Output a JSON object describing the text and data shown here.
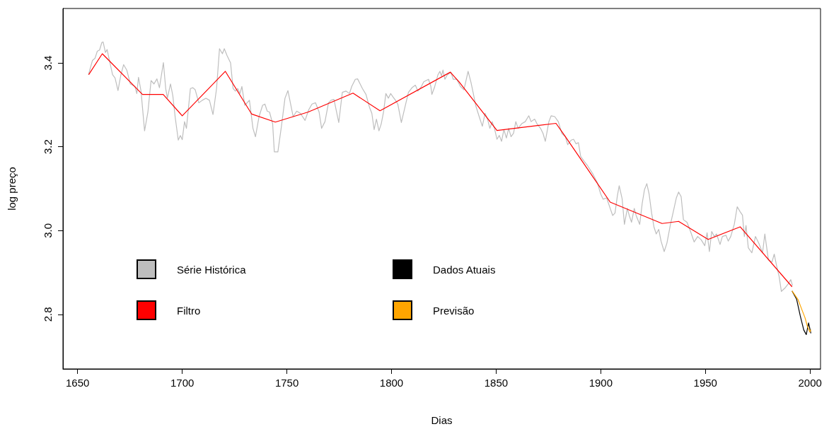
{
  "chart_data": {
    "type": "line",
    "xlabel": "Dias",
    "ylabel": "log preço",
    "xlim": [
      1643,
      2005
    ],
    "ylim": [
      2.67,
      3.53
    ],
    "xticks": [
      1650,
      1700,
      1750,
      1800,
      1850,
      1900,
      1950,
      2000
    ],
    "yticks": [
      2.8,
      {
        "value": 3,
        "label": "3.0"
      },
      3.2,
      3.4
    ],
    "legend": "bottom left",
    "series": [
      {
        "name": "Série Histórica",
        "color": "#bebebe",
        "x": [
          1655.2,
          1657.1,
          1658.3,
          1659.4,
          1660.5,
          1661.6,
          1662.2,
          1663.3,
          1664.1,
          1665,
          1666.7,
          1667.9,
          1669.3,
          1670.7,
          1672,
          1673.5,
          1675.2,
          1677.4,
          1678.3,
          1679.1,
          1680.3,
          1682,
          1683.6,
          1685.1,
          1686.5,
          1687.9,
          1689.1,
          1691,
          1692.1,
          1692.9,
          1694.4,
          1695.5,
          1696.6,
          1698.1,
          1699.1,
          1700,
          1701.1,
          1702,
          1703.9,
          1705.1,
          1706.2,
          1707.9,
          1709.6,
          1711.3,
          1713,
          1714.7,
          1716.4,
          1717.8,
          1719.2,
          1720.1,
          1721.4,
          1723.1,
          1724.3,
          1725.4,
          1726.5,
          1727.6,
          1728.5,
          1729.9,
          1732.1,
          1733.8,
          1735,
          1736.7,
          1738.4,
          1739.5,
          1740.6,
          1741.7,
          1743.2,
          1744,
          1745.7,
          1747.4,
          1749.1,
          1750.5,
          1751.9,
          1753,
          1754.7,
          1756.4,
          1758.7,
          1760.4,
          1762,
          1763.7,
          1765.4,
          1766.6,
          1768.2,
          1769.9,
          1771.1,
          1772.5,
          1774.8,
          1776.5,
          1778.2,
          1779.9,
          1781,
          1782.7,
          1783.8,
          1785,
          1786.1,
          1787.8,
          1789.5,
          1790.6,
          1791.7,
          1792.8,
          1794,
          1795.1,
          1796.2,
          1797.3,
          1798.5,
          1799.6,
          1800.7,
          1801.9,
          1803,
          1804.7,
          1806.4,
          1808.1,
          1809.8,
          1811.4,
          1812.6,
          1814.3,
          1815.4,
          1816.5,
          1817.7,
          1818.8,
          1819.3,
          1820.5,
          1822.2,
          1823.1,
          1823.9,
          1824.6,
          1825.5,
          1826.7,
          1828.4,
          1829.5,
          1831.2,
          1832.9,
          1834.6,
          1836.6,
          1838,
          1839.1,
          1840.2,
          1841.9,
          1843.4,
          1844.7,
          1845.9,
          1847,
          1848.1,
          1849.2,
          1850.4,
          1851.5,
          1852.6,
          1853.7,
          1854.9,
          1856,
          1857.1,
          1858.3,
          1859.4,
          1860.5,
          1862.2,
          1863.9,
          1865.6,
          1866.7,
          1868.4,
          1869.5,
          1871.2,
          1872.4,
          1873.5,
          1875.2,
          1876.3,
          1878,
          1879.7,
          1881.4,
          1883.1,
          1884.2,
          1885.9,
          1887,
          1888.2,
          1889.3,
          1890.4,
          1892.1,
          1893.8,
          1896,
          1898.3,
          1900,
          1901.1,
          1902.8,
          1904.5,
          1905.7,
          1906.8,
          1907.9,
          1908.8,
          1910.2,
          1911.3,
          1912.7,
          1913.6,
          1914.7,
          1916,
          1916.9,
          1918.6,
          1919.8,
          1920.9,
          1922,
          1923.1,
          1924.3,
          1925.4,
          1926.5,
          1927.7,
          1928.8,
          1930.3,
          1931.6,
          1933.3,
          1935,
          1936.1,
          1937.2,
          1938.4,
          1939.5,
          1941.2,
          1942.9,
          1944.6,
          1946.3,
          1948,
          1949.7,
          1950.8,
          1951.9,
          1953,
          1954.2,
          1955.3,
          1957,
          1958.1,
          1959.8,
          1960.9,
          1962.1,
          1963.8,
          1965.2,
          1966.6,
          1967.7,
          1968.6,
          1969.4,
          1970.5,
          1972.2,
          1973.9,
          1975.6,
          1977.3,
          1978.4,
          1980.1,
          1981.8,
          1982.9,
          1984.1,
          1985.2,
          1986.3,
          1988,
          1989.7,
          1990.8,
          1991.6
        ],
        "values": [
          3.372,
          3.406,
          3.411,
          3.428,
          3.431,
          3.449,
          3.45,
          3.425,
          3.432,
          3.411,
          3.372,
          3.364,
          3.334,
          3.372,
          3.396,
          3.383,
          3.35,
          3.344,
          3.327,
          3.366,
          3.333,
          3.238,
          3.283,
          3.358,
          3.35,
          3.362,
          3.341,
          3.401,
          3.339,
          3.316,
          3.35,
          3.322,
          3.272,
          3.216,
          3.227,
          3.217,
          3.26,
          3.244,
          3.339,
          3.341,
          3.336,
          3.305,
          3.311,
          3.316,
          3.311,
          3.277,
          3.339,
          3.434,
          3.422,
          3.434,
          3.418,
          3.4,
          3.339,
          3.333,
          3.339,
          3.327,
          3.344,
          3.299,
          3.311,
          3.244,
          3.224,
          3.272,
          3.299,
          3.302,
          3.285,
          3.283,
          3.255,
          3.188,
          3.188,
          3.249,
          3.316,
          3.334,
          3.299,
          3.272,
          3.285,
          3.28,
          3.263,
          3.288,
          3.302,
          3.305,
          3.283,
          3.244,
          3.26,
          3.305,
          3.311,
          3.313,
          3.258,
          3.33,
          3.333,
          3.327,
          3.344,
          3.361,
          3.362,
          3.35,
          3.339,
          3.325,
          3.294,
          3.28,
          3.241,
          3.266,
          3.238,
          3.255,
          3.283,
          3.327,
          3.316,
          3.327,
          3.319,
          3.311,
          3.302,
          3.258,
          3.294,
          3.33,
          3.341,
          3.347,
          3.333,
          3.344,
          3.355,
          3.358,
          3.361,
          3.344,
          3.325,
          3.341,
          3.372,
          3.38,
          3.369,
          3.383,
          3.361,
          3.372,
          3.378,
          3.361,
          3.361,
          3.344,
          3.336,
          3.38,
          3.353,
          3.327,
          3.299,
          3.272,
          3.249,
          3.28,
          3.266,
          3.244,
          3.26,
          3.244,
          3.218,
          3.227,
          3.213,
          3.241,
          3.221,
          3.244,
          3.224,
          3.232,
          3.26,
          3.244,
          3.255,
          3.26,
          3.274,
          3.26,
          3.266,
          3.255,
          3.244,
          3.232,
          3.213,
          3.26,
          3.274,
          3.272,
          3.26,
          3.232,
          3.224,
          3.205,
          3.216,
          3.218,
          3.207,
          3.21,
          3.177,
          3.165,
          3.154,
          3.137,
          3.115,
          3.087,
          3.075,
          3.078,
          3.053,
          3.036,
          3.042,
          3.082,
          3.107,
          3.076,
          3.015,
          3.053,
          3.036,
          3.02,
          3.053,
          3.036,
          3.015,
          3.065,
          3.098,
          3.112,
          3.087,
          3.042,
          3.009,
          2.992,
          3.003,
          2.975,
          2.95,
          2.97,
          3.015,
          3.053,
          3.078,
          3.092,
          3.081,
          3.026,
          3.02,
          2.998,
          2.973,
          2.986,
          2.978,
          2.964,
          2.995,
          2.95,
          2.998,
          2.986,
          2.992,
          2.967,
          2.986,
          2.989,
          2.975,
          2.986,
          3.015,
          3.057,
          3.045,
          3.037,
          2.986,
          3.012,
          2.959,
          2.947,
          2.986,
          2.969,
          2.947,
          2.992,
          2.93,
          2.925,
          2.944,
          2.914,
          2.891,
          2.855,
          2.863,
          2.874,
          2.883,
          2.869
        ]
      },
      {
        "name": "Filtro",
        "color": "#ff0000",
        "x": [
          1655.3,
          1661.8,
          1681,
          1690.9,
          1700,
          1720.6,
          1733.2,
          1744.5,
          1760.2,
          1781.6,
          1794.5,
          1828.1,
          1832.3,
          1850.4,
          1878.6,
          1883.1,
          1904.5,
          1929.3,
          1937.2,
          1951.3,
          1966.6,
          1991.4
        ],
        "values": [
          3.372,
          3.422,
          3.325,
          3.325,
          3.274,
          3.38,
          3.278,
          3.259,
          3.283,
          3.328,
          3.286,
          3.378,
          3.355,
          3.239,
          3.256,
          3.224,
          3.068,
          3.017,
          3.022,
          2.979,
          3.009,
          2.866
        ]
      },
      {
        "name": "Dados Atuais",
        "color": "#000000",
        "x": [
          1991.4,
          1993.6,
          1995.3,
          1997,
          1998.2,
          1999.3,
          2000.4
        ],
        "values": [
          2.856,
          2.836,
          2.797,
          2.763,
          2.752,
          2.78,
          2.755
        ]
      },
      {
        "name": "Previsão",
        "color": "#ffa500",
        "x": [
          1991.4,
          1994.2,
          1995.9,
          1997.6,
          1998.7,
          1999.9,
          2000.4
        ],
        "values": [
          2.856,
          2.836,
          2.814,
          2.792,
          2.772,
          2.758,
          2.764
        ]
      }
    ]
  }
}
